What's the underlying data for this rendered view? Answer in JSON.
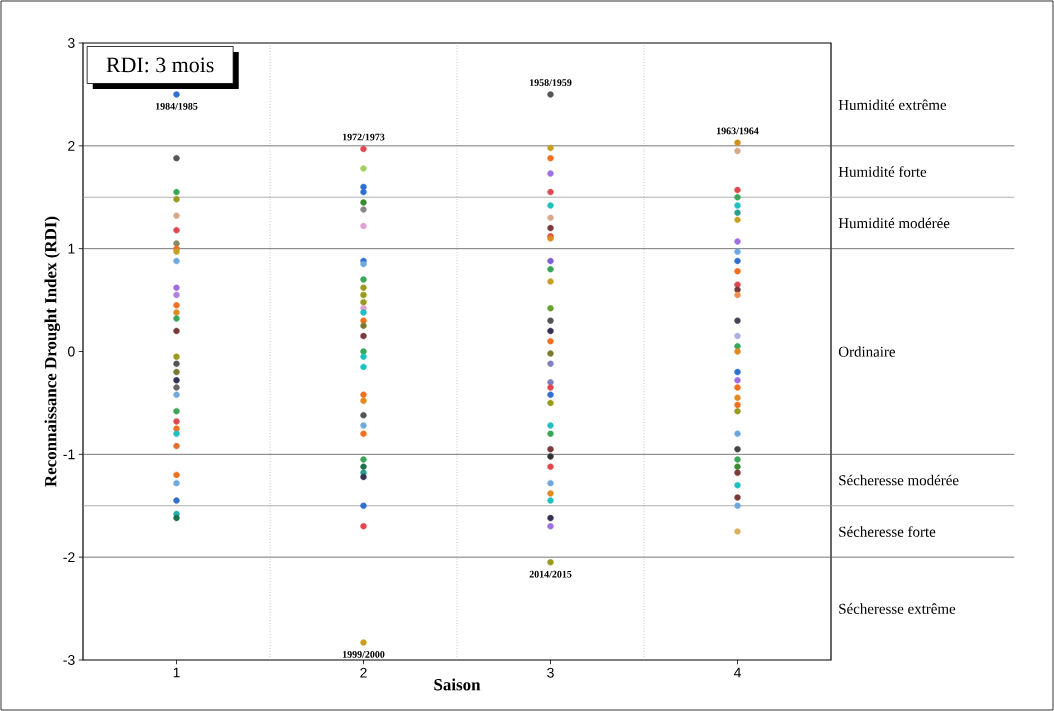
{
  "chart_data": {
    "type": "scatter",
    "xlabel": "Saison",
    "ylabel": "Reconnaissance Drought Index (RDI)",
    "xlim": [
      0.5,
      4.5
    ],
    "ylim": [
      -3,
      3
    ],
    "xticks": [
      1,
      2,
      3,
      4
    ],
    "yticks": [
      -3,
      -2,
      -1,
      0,
      1,
      2,
      3
    ],
    "grid": false,
    "series": [
      {
        "x": [
          1,
          1,
          1,
          1,
          1,
          1,
          1,
          1,
          1,
          1,
          1,
          1,
          1,
          1,
          1,
          1,
          1,
          1,
          1,
          1,
          1,
          1,
          1,
          1,
          1,
          1,
          1,
          1,
          1,
          1,
          1,
          1
        ],
        "values": [
          2.5,
          1.88,
          1.55,
          1.48,
          1.32,
          1.18,
          1.05,
          1.0,
          0.97,
          0.88,
          0.62,
          0.55,
          0.45,
          0.38,
          0.32,
          0.2,
          -0.05,
          -0.12,
          -0.2,
          -0.28,
          -0.35,
          -0.42,
          -0.58,
          -0.68,
          -0.75,
          -0.8,
          -0.92,
          -1.2,
          -1.28,
          -1.45,
          -1.58,
          -1.62
        ],
        "colors": [
          "#2f6fd0",
          "#555555",
          "#3aa657",
          "#9a9a1f",
          "#d9a88a",
          "#e0484f",
          "#888866",
          "#f07020",
          "#c8a020",
          "#6fa8dc",
          "#a070e0",
          "#b080e0",
          "#f07020",
          "#e08a20",
          "#3aa657",
          "#7a3a3a",
          "#9a9a1f",
          "#555555",
          "#7a7a30",
          "#333355",
          "#666666",
          "#6fa8dc",
          "#3aa657",
          "#e0484f",
          "#f07020",
          "#20c0c0",
          "#e07030",
          "#f07020",
          "#6fa8dc",
          "#2f6fd0",
          "#20b0b0",
          "#207050"
        ]
      },
      {
        "x": [
          2,
          2,
          2,
          2,
          2,
          2,
          2,
          2,
          2,
          2,
          2,
          2,
          2,
          2,
          2,
          2,
          2,
          2,
          2,
          2,
          2,
          2,
          2,
          2,
          2,
          2,
          2,
          2,
          2,
          2,
          2,
          2,
          2
        ],
        "values": [
          1.97,
          1.78,
          1.6,
          1.55,
          1.45,
          1.38,
          1.22,
          0.88,
          0.85,
          0.7,
          0.62,
          0.55,
          0.48,
          0.42,
          0.38,
          0.3,
          0.25,
          0.15,
          0.0,
          -0.05,
          -0.15,
          -0.42,
          -0.48,
          -0.62,
          -0.72,
          -0.8,
          -1.05,
          -1.12,
          -1.18,
          -1.22,
          -1.5,
          -1.7,
          -2.83
        ],
        "colors": [
          "#e0484f",
          "#a0d060",
          "#2f6fd0",
          "#2f6fd0",
          "#3a8a30",
          "#888888",
          "#e0a0d0",
          "#2f6fd0",
          "#6fa8dc",
          "#3aa657",
          "#9a9a1f",
          "#9a9a1f",
          "#9a9a1f",
          "#e0a0d0",
          "#20c0c0",
          "#f07020",
          "#7a7a30",
          "#7a3a3a",
          "#3aa657",
          "#20c0c0",
          "#20c0c0",
          "#f07020",
          "#e08a20",
          "#555555",
          "#6fa8dc",
          "#f07020",
          "#3aa657",
          "#207050",
          "#2a9d8f",
          "#333355",
          "#2f6fd0",
          "#e0484f",
          "#c8a020"
        ]
      },
      {
        "x": [
          3,
          3,
          3,
          3,
          3,
          3,
          3,
          3,
          3,
          3,
          3,
          3,
          3,
          3,
          3,
          3,
          3,
          3,
          3,
          3,
          3,
          3,
          3,
          3,
          3,
          3,
          3,
          3,
          3,
          3,
          3,
          3,
          3,
          3
        ],
        "values": [
          2.5,
          1.98,
          1.88,
          1.73,
          1.55,
          1.42,
          1.3,
          1.2,
          1.12,
          1.1,
          0.88,
          0.8,
          0.68,
          0.42,
          0.3,
          0.2,
          0.1,
          -0.02,
          -0.12,
          -0.3,
          -0.35,
          -0.42,
          -0.5,
          -0.72,
          -0.8,
          -0.95,
          -1.02,
          -1.12,
          -1.28,
          -1.38,
          -1.45,
          -1.62,
          -1.7,
          -2.05
        ],
        "colors": [
          "#555555",
          "#c8a020",
          "#f07020",
          "#a070e0",
          "#e0484f",
          "#20c0c0",
          "#d9a88a",
          "#7a3a3a",
          "#e0484f",
          "#e08a20",
          "#8060d0",
          "#3aa657",
          "#c8a020",
          "#6aa030",
          "#555555",
          "#333355",
          "#f07020",
          "#7a7a30",
          "#8080c0",
          "#8080c0",
          "#e0484f",
          "#2f6fd0",
          "#9a9a1f",
          "#20c0c0",
          "#3aa657",
          "#7a3a3a",
          "#333333",
          "#e0484f",
          "#6fa8dc",
          "#e08a20",
          "#20c0c0",
          "#333355",
          "#a070e0",
          "#9a9a1f"
        ]
      },
      {
        "x": [
          4,
          4,
          4,
          4,
          4,
          4,
          4,
          4,
          4,
          4,
          4,
          4,
          4,
          4,
          4,
          4,
          4,
          4,
          4,
          4,
          4,
          4,
          4,
          4,
          4,
          4,
          4,
          4,
          4,
          4,
          4,
          4,
          4
        ],
        "values": [
          2.03,
          1.95,
          1.57,
          1.5,
          1.42,
          1.35,
          1.28,
          1.07,
          0.97,
          0.88,
          0.78,
          0.65,
          0.6,
          0.55,
          0.3,
          0.15,
          0.05,
          0.0,
          -0.2,
          -0.28,
          -0.35,
          -0.45,
          -0.52,
          -0.58,
          -0.8,
          -0.95,
          -1.05,
          -1.12,
          -1.18,
          -1.3,
          -1.42,
          -1.5,
          -1.75
        ],
        "colors": [
          "#d0901a",
          "#d9a88a",
          "#e0484f",
          "#3aa657",
          "#20c0c0",
          "#2a9d8f",
          "#c8a020",
          "#a070e0",
          "#6fa8dc",
          "#2f6fd0",
          "#f07020",
          "#e0484f",
          "#7a3a3a",
          "#f09050",
          "#444455",
          "#b0b0e0",
          "#3aa657",
          "#e08a20",
          "#2f6fd0",
          "#a070e0",
          "#f07020",
          "#e08a20",
          "#f07020",
          "#9a9a1f",
          "#6fa8dc",
          "#444444",
          "#3aa657",
          "#3a8a30",
          "#7a3a3a",
          "#20c0c0",
          "#7a3a3a",
          "#6fa8dc",
          "#d9b060"
        ]
      }
    ],
    "ref_lines": [
      {
        "axis": "y",
        "value": 2,
        "color": "#555555"
      },
      {
        "axis": "y",
        "value": 1.5,
        "color": "#999999"
      },
      {
        "axis": "y",
        "value": 1,
        "color": "#555555"
      },
      {
        "axis": "y",
        "value": -1,
        "color": "#555555"
      },
      {
        "axis": "y",
        "value": -1.5,
        "color": "#999999"
      },
      {
        "axis": "y",
        "value": -2,
        "color": "#555555"
      },
      {
        "axis": "x",
        "value": 1.5,
        "color": "#aaaaaa",
        "line_style": "dotted"
      },
      {
        "axis": "x",
        "value": 2.5,
        "color": "#aaaaaa",
        "line_style": "dotted"
      },
      {
        "axis": "x",
        "value": 3.5,
        "color": "#aaaaaa",
        "line_style": "dotted"
      }
    ],
    "annotations": [
      "RDI: 3 mois",
      "Humidité extrême",
      "Humidité forte",
      "Humidité modérée",
      "Ordinaire",
      "Sécheresse modérée",
      "Sécheresse forte",
      "Sécheresse extrême",
      {
        "text": "1984/1985",
        "x": 1,
        "y": 2.5
      },
      {
        "text": "1972/1973",
        "x": 2,
        "y": 1.97
      },
      {
        "text": "1958/1959",
        "x": 3,
        "y": 2.5
      },
      {
        "text": "1963/1964",
        "x": 4,
        "y": 2.03
      },
      {
        "text": "1999/2000",
        "x": 2,
        "y": -2.83
      },
      {
        "text": "2014/2015",
        "x": 3,
        "y": -2.05
      }
    ]
  }
}
